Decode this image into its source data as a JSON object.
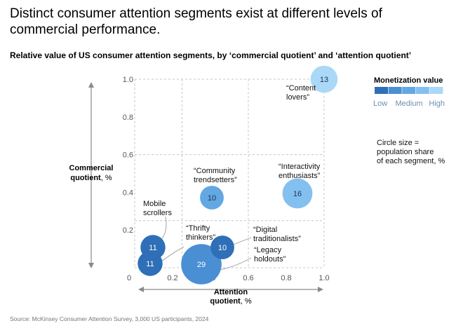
{
  "header": {
    "title": "Distinct consumer attention segments exist at different levels of commercial performance.",
    "subtitle": "Relative value of US consumer attention segments, by ‘commercial quotient’ and ‘attention quotient’",
    "source": "Source: McKinsey Consumer Attention Survey, 3,000 US participants, 2024"
  },
  "legend": {
    "title": "Monetization value",
    "low": "Low",
    "medium": "Medium",
    "high": "High",
    "swatches": [
      "#2e6fb7",
      "#4a8fd4",
      "#63a7e3",
      "#84c0ef",
      "#aad8f7"
    ],
    "size_note_lines": [
      "Circle size =",
      "population share",
      "of each segment, %"
    ]
  },
  "colors": {
    "low": "#2e6fb7",
    "medium_low": "#4a8fd4",
    "medium": "#63a7e3",
    "medium_high": "#84c0ef",
    "high": "#aad8f7",
    "grid": "#c4c4c4",
    "axis": "#8a8a8a"
  },
  "chart_data": {
    "type": "scatter",
    "title": "Relative value of US consumer attention segments, by ‘commercial quotient’ and ‘attention quotient’",
    "xlabel_lines": [
      "Attention",
      "quotient"
    ],
    "xlabel_unit": ", %",
    "ylabel_lines": [
      "Commercial",
      "quotient"
    ],
    "ylabel_unit": ", %",
    "xlim": [
      0,
      1.0
    ],
    "ylim": [
      0,
      1.0
    ],
    "x_ticks": [
      "0",
      "0.2",
      "0.4",
      "0.6",
      "0.8",
      "1.0"
    ],
    "y_ticks": [
      "0.2",
      "0.4",
      "0.6",
      "0.8",
      "1.0"
    ],
    "quadrant_lines": {
      "x": [
        0.25,
        0.6
      ],
      "y": [
        0.25,
        0.6
      ]
    },
    "size_encoding": "population share of each segment, %",
    "color_encoding": "Monetization value",
    "series": [
      {
        "name": "Mobile scrollers",
        "label_lines": [
          "Mobile",
          "scrollers"
        ],
        "x": 0.12,
        "y": 0.11,
        "size": 11,
        "color_level": 0
      },
      {
        "name": "Mobile scrollers",
        "label_lines": [],
        "x": 0.1,
        "y": 0.02,
        "size": 11,
        "color_level": 0
      },
      {
        "name": "“Thrifty thinkers”",
        "label_lines": [
          "“Thrifty",
          "thinkers”"
        ],
        "x": 0.37,
        "y": 0.02,
        "size": 29,
        "color_level": 1
      },
      {
        "name": "“Digital traditionalists”",
        "label_lines": [
          "“Digital",
          "traditionalists”"
        ],
        "x": 0.49,
        "y": 0.11,
        "size": 10,
        "color_level": 0
      },
      {
        "name": "“Legacy holdouts”",
        "label_lines": [
          "“Legacy",
          "holdouts”"
        ],
        "x": 0.49,
        "y": 0.11,
        "size": 0,
        "color_level": 0
      },
      {
        "name": "“Community trendsetters”",
        "label_lines": [
          "“Community",
          "trendsetters”"
        ],
        "x": 0.43,
        "y": 0.37,
        "size": 10,
        "color_level": 2
      },
      {
        "name": "“Interactivity enthusiasts”",
        "label_lines": [
          "“Interactivity",
          "enthusiasts”"
        ],
        "x": 0.86,
        "y": 0.39,
        "size": 16,
        "color_level": 3
      },
      {
        "name": "“Content lovers”",
        "label_lines": [
          "“Content",
          "lovers”"
        ],
        "x": 1.0,
        "y": 1.0,
        "size": 13,
        "color_level": 4
      }
    ]
  }
}
